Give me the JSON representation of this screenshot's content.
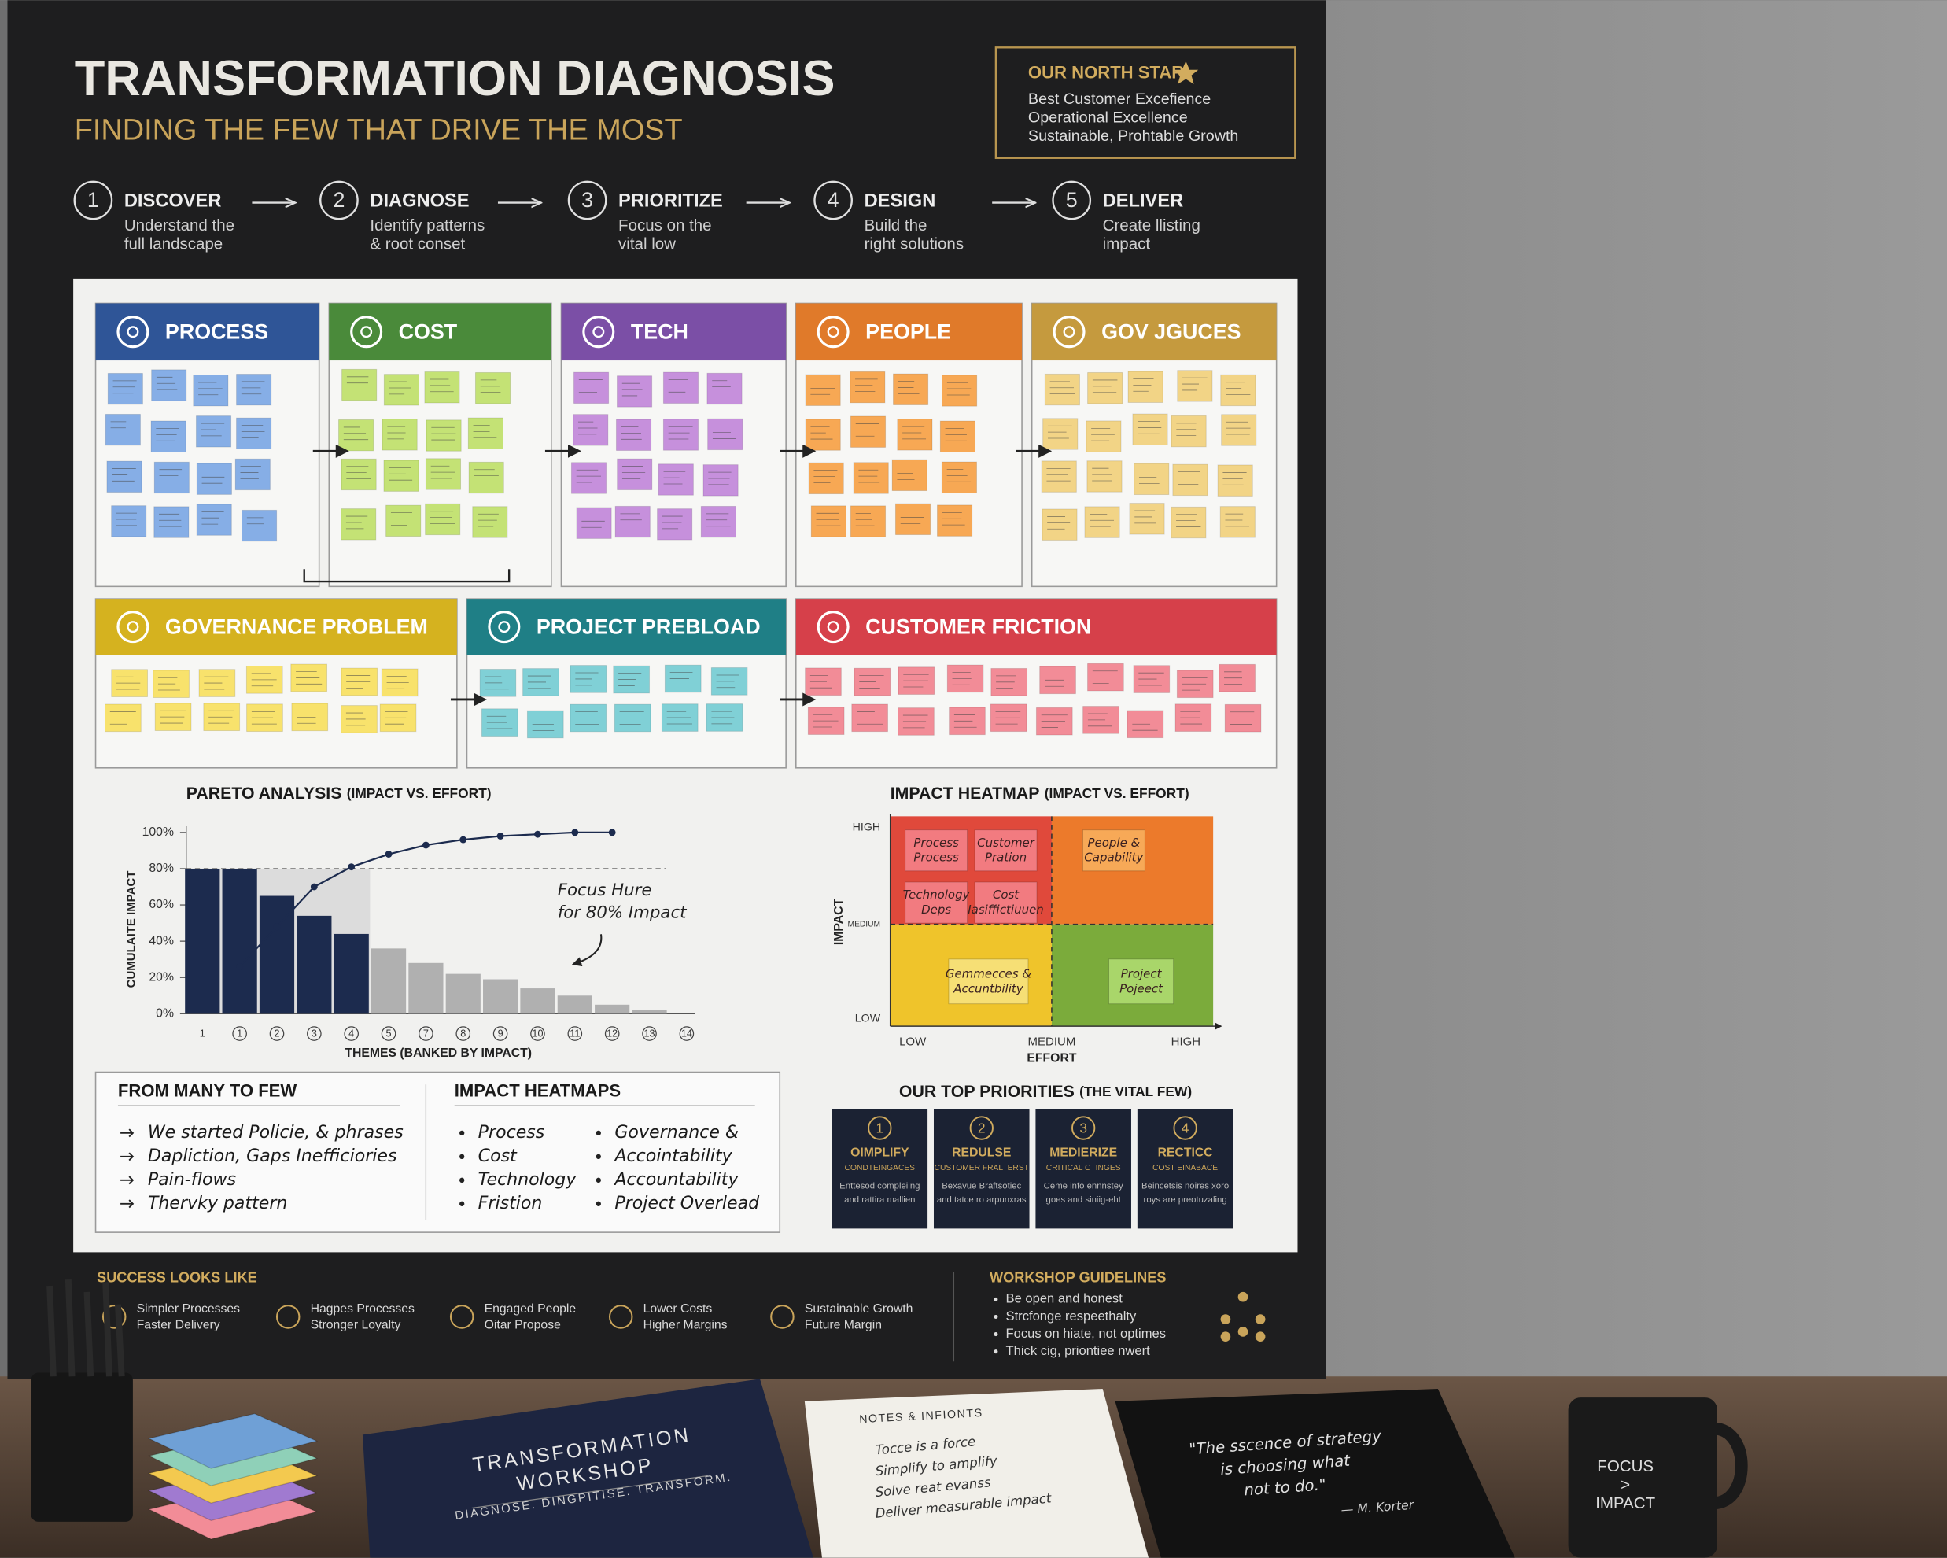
{
  "header": {
    "title": "TRANSFORMATION DIAGNOSIS",
    "subtitle": "FINDING THE FEW THAT DRIVE THE MOST"
  },
  "north_star": {
    "title": "OUR NORTH STAR",
    "items": [
      "Best Customer Excefience",
      "Operational Excellence",
      "Sustainable, Prohtable Growth"
    ]
  },
  "steps": [
    {
      "number": 1,
      "name": "DISCOVER",
      "lines": [
        "Understand the",
        "full landscape"
      ]
    },
    {
      "number": 2,
      "name": "DIAGNOSE",
      "lines": [
        "Identify patterns",
        "& root conset"
      ]
    },
    {
      "number": 3,
      "name": "PRIORITIZE",
      "lines": [
        "Focus on the",
        "vital low"
      ]
    },
    {
      "number": 4,
      "name": "DESIGN",
      "lines": [
        "Build the",
        "right solutions"
      ]
    },
    {
      "number": 5,
      "name": "DELIVER",
      "lines": [
        "Create llisting",
        "impact"
      ]
    }
  ],
  "boards": [
    {
      "title": "PROCESS",
      "color": "#2f5597",
      "note_color": "#86aee6"
    },
    {
      "title": "COST",
      "color": "#4a8a3a",
      "note_color": "#c4e275"
    },
    {
      "title": "TECH",
      "color": "#7b4fa6",
      "note_color": "#c690dc"
    },
    {
      "title": "PEOPLE",
      "color": "#e07a2a",
      "note_color": "#f7a854"
    },
    {
      "title": "GOV JGUCES",
      "color": "#c59a3e",
      "note_color": "#f2d486"
    },
    {
      "title": "GOVERNANCE PROBLEM",
      "color": "#d5b21f",
      "note_color": "#f8e26c"
    },
    {
      "title": "PROJECT PREBLOAD",
      "color": "#1f7f86",
      "note_color": "#80d0d6"
    },
    {
      "title": "CUSTOMER FRICTION",
      "color": "#d6404a",
      "note_color": "#f28c97"
    }
  ],
  "pareto": {
    "type": "bar",
    "title": "PARETO ANALYSIS",
    "title_note": "(IMPACT VS. EFFORT)",
    "y_label": "CUMULAITE IMPACT",
    "x_label": "THEMES (BANKED BY IMPACT)",
    "categories": [
      "1",
      "1",
      "2",
      "3",
      "4",
      "5",
      "7",
      "8",
      "9",
      "10",
      "11",
      "12",
      "13",
      "14"
    ],
    "values": [
      80,
      80,
      65,
      54,
      44,
      36,
      28,
      22,
      19,
      14,
      10,
      5,
      2,
      null
    ],
    "colors": [
      "#1c2b4e",
      "#1c2b4e",
      "#1c2b4e",
      "#1c2b4e",
      "#1c2b4e",
      "#b0b0b0",
      "#b0b0b0",
      "#b0b0b0",
      "#b0b0b0",
      "#b0b0b0",
      "#b0b0b0",
      "#b0b0b0",
      "#b0b0b0",
      "#b0b0b0"
    ],
    "cumulative": [
      null,
      26,
      48,
      70,
      81,
      88,
      93,
      96,
      98,
      99,
      100,
      100,
      null,
      null
    ],
    "line_color": "#1c2b4e",
    "reference": 80,
    "annotation": [
      "Focus Hure",
      "for 80% Impact"
    ],
    "ylim": [
      0,
      100
    ],
    "yticks": [
      {
        "value": 0,
        "label": "0%"
      },
      {
        "value": 20,
        "label": "20%"
      },
      {
        "value": 40,
        "label": "40%"
      },
      {
        "value": 60,
        "label": "60%"
      },
      {
        "value": 80,
        "label": "80%"
      },
      {
        "value": 100,
        "label": "100%"
      }
    ]
  },
  "heatmap": {
    "title": "IMPACT HEATMAP",
    "title_note": "(IMPACT VS. EFFORT)",
    "y_label": "IMPACT",
    "x_label": "EFFORT",
    "y_levels": [
      "LOW",
      "MEDIUM",
      "HIGH"
    ],
    "x_levels": [
      "LOW",
      "MEDIUM",
      "HIGH"
    ],
    "quadrant_colors": [
      "#e0493b",
      "#ec7a2b",
      "#efc42b",
      "#7bab3b"
    ],
    "notes": [
      {
        "lines": [
          "Process",
          "Process"
        ],
        "color": "#f27b80"
      },
      {
        "lines": [
          "Customer",
          "Pration"
        ],
        "color": "#f27b80"
      },
      {
        "lines": [
          "Technology",
          "Deps"
        ],
        "color": "#f27b80"
      },
      {
        "lines": [
          "Cost",
          "Iasiffictiuuen"
        ],
        "color": "#f27b80"
      },
      {
        "lines": [
          "People &",
          "Capability"
        ],
        "color": "#f7a957"
      },
      {
        "lines": [
          "Gemmecces &",
          "Accuntbility"
        ],
        "color": "#f6df75"
      },
      {
        "lines": [
          "Project",
          "Pojeect"
        ],
        "color": "#a9d66a"
      }
    ]
  },
  "summary": {
    "left": {
      "title": "FROM MANY TO FEW",
      "items": [
        "We started Policie, & phrases",
        "Dapliction, Gaps Inefficiories",
        "Pain-flows",
        "Thervky pattern"
      ]
    },
    "right": {
      "title": "IMPACT HEATMAPS",
      "columns": [
        [
          "Process",
          "Cost",
          "Technology",
          "Fristion"
        ],
        [
          "Governance &",
          "Accointability",
          "Accountability",
          "Project Overlead"
        ]
      ]
    }
  },
  "priorities": {
    "title": "OUR TOP PRIORITIES",
    "title_note": "(THE VITAL FEW)",
    "cards": [
      {
        "number": 1,
        "name": "OIMPLIFY",
        "sub": "CONDTEINGACES",
        "lines": [
          "Enttesod compleiing",
          "and rattira mallien"
        ]
      },
      {
        "number": 2,
        "name": "REDULSE",
        "sub": "CUSTOMER FRALTERST",
        "lines": [
          "Bexavue Braftsotiec",
          "and tatce ro arpunxras"
        ]
      },
      {
        "number": 3,
        "name": "MEDIERIZE",
        "sub": "CRITICAL CTINGES",
        "lines": [
          "Ceme info ennnstey",
          "goes and siniig-eht"
        ]
      },
      {
        "number": 4,
        "name": "RECTICC",
        "sub": "COST EINABACE",
        "lines": [
          "Beincetsis noires xoro",
          "roys are preotuzaling"
        ]
      }
    ]
  },
  "footer": {
    "success": {
      "title": "SUCCESS LOOKS LIKE",
      "items": [
        [
          "Simpler Processes",
          "Faster Delivery"
        ],
        [
          "Hagpes Processes",
          "Stronger Loyalty"
        ],
        [
          "Engaged People",
          "Oitar Propose"
        ],
        [
          "Lower Costs",
          "Higher Margins"
        ],
        [
          "Sustainable Growth",
          "Future Margin"
        ]
      ]
    },
    "guidelines": {
      "title": "WORKSHOP GUIDELINES",
      "items": [
        "Be open and honest",
        "Strcfonge respeethalty",
        "Focus on hiate, not optimes",
        "Thick cig, priontiee nwert"
      ]
    }
  },
  "desk": {
    "notebook": {
      "title_lines": [
        "TRANSFORMATION",
        "WORKSHOP"
      ],
      "tagline": "DIAGNOSE. DINGPITISE. TRANSFORM."
    },
    "notes": {
      "title": "NOTES & INFIONTS",
      "items": [
        "Tocce is a force",
        "Simplify to amplify",
        "Solve reat evanss",
        "Deliver measurable impact"
      ]
    },
    "quote": {
      "lines": [
        "\"The sscence of strategy",
        "is choosing what",
        "not to do.\""
      ],
      "author": "— M. Korter"
    },
    "mug": {
      "lines": [
        "FOCUS",
        ">",
        "IMPACT"
      ]
    }
  }
}
